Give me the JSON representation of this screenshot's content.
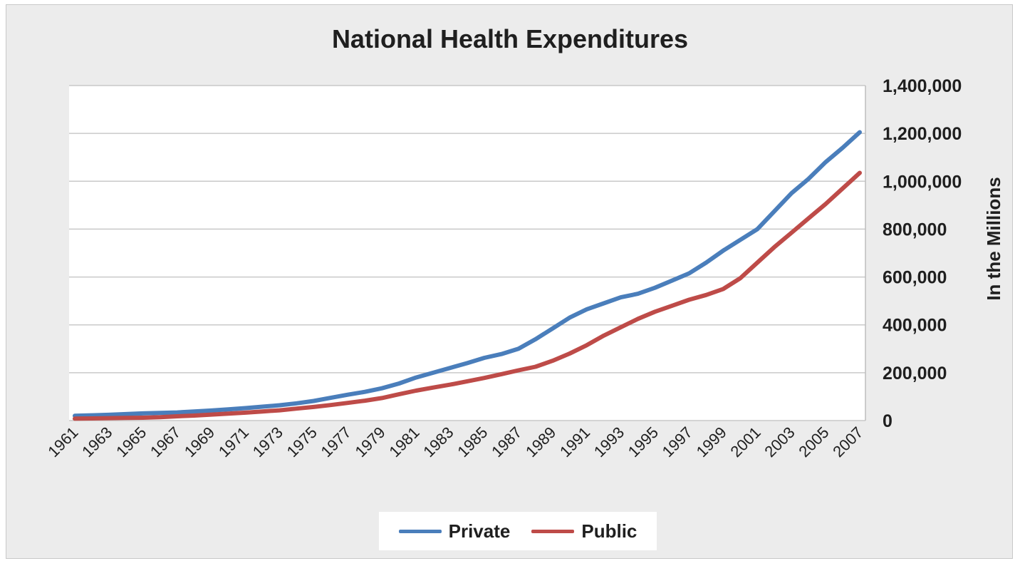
{
  "chart_data": {
    "type": "line",
    "title": "National Health Expenditures",
    "ylabel": "In the Millions",
    "ylim": [
      0,
      1400000
    ],
    "yticks": [
      "0",
      "200,000",
      "400,000",
      "600,000",
      "800,000",
      "1,000,000",
      "1,200,000",
      "1,400,000"
    ],
    "ytick_values": [
      0,
      200000,
      400000,
      600000,
      800000,
      1000000,
      1200000,
      1400000
    ],
    "y_axis_side": "right",
    "grid": true,
    "legend_position": "bottom",
    "x_label_rotation": -45,
    "x": [
      1961,
      1962,
      1963,
      1964,
      1965,
      1966,
      1967,
      1968,
      1969,
      1970,
      1971,
      1972,
      1973,
      1974,
      1975,
      1976,
      1977,
      1978,
      1979,
      1980,
      1981,
      1982,
      1983,
      1984,
      1985,
      1986,
      1987,
      1988,
      1989,
      1990,
      1991,
      1992,
      1993,
      1994,
      1995,
      1996,
      1997,
      1998,
      1999,
      2000,
      2001,
      2002,
      2003,
      2004,
      2005,
      2006,
      2007
    ],
    "xtick_labels": [
      "1961",
      "1963",
      "1965",
      "1967",
      "1969",
      "1971",
      "1973",
      "1975",
      "1977",
      "1979",
      "1981",
      "1983",
      "1985",
      "1987",
      "1989",
      "1991",
      "1993",
      "1995",
      "1997",
      "1999",
      "2001",
      "2003",
      "2005",
      "2007"
    ],
    "series": [
      {
        "name": "Private",
        "color": "#4a7ebb",
        "values": [
          20000,
          22000,
          24000,
          27000,
          30000,
          32000,
          34000,
          38000,
          42000,
          47000,
          52000,
          58000,
          64000,
          72000,
          82000,
          95000,
          108000,
          120000,
          135000,
          155000,
          180000,
          200000,
          220000,
          240000,
          262000,
          278000,
          300000,
          340000,
          385000,
          430000,
          465000,
          490000,
          515000,
          530000,
          555000,
          585000,
          615000,
          660000,
          710000,
          755000,
          800000,
          875000,
          950000,
          1010000,
          1080000,
          1140000,
          1205000
        ]
      },
      {
        "name": "Public",
        "color": "#be4b48",
        "values": [
          8000,
          9000,
          10000,
          11000,
          12000,
          14000,
          18000,
          21000,
          25000,
          29000,
          33000,
          38000,
          43000,
          50000,
          57000,
          65000,
          74000,
          83000,
          94000,
          110000,
          125000,
          138000,
          150000,
          164000,
          178000,
          194000,
          210000,
          225000,
          250000,
          280000,
          315000,
          355000,
          390000,
          425000,
          455000,
          480000,
          505000,
          525000,
          550000,
          595000,
          660000,
          725000,
          785000,
          845000,
          905000,
          970000,
          1035000
        ]
      }
    ]
  }
}
